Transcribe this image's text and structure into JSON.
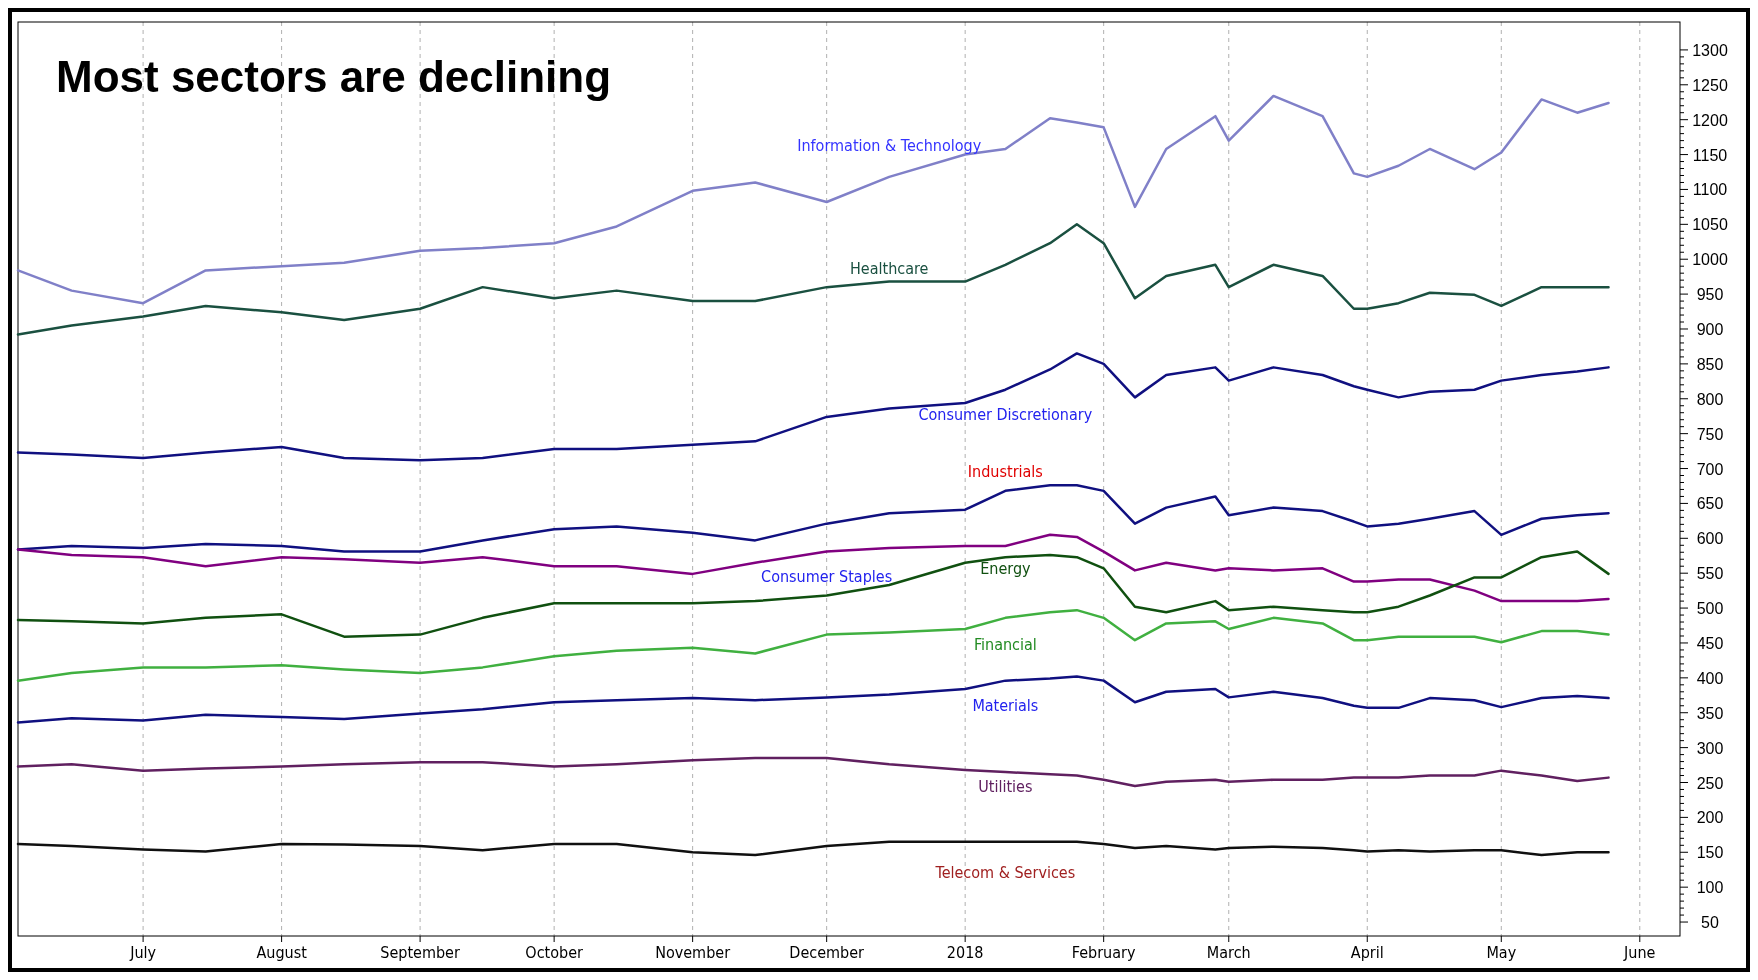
{
  "chart_data": {
    "type": "line",
    "title": "Most sectors are declining",
    "x": [
      "2017-06-03",
      "2017-06-15",
      "2017-07-01",
      "2017-07-15",
      "2017-08-01",
      "2017-08-15",
      "2017-09-01",
      "2017-09-15",
      "2017-10-01",
      "2017-10-15",
      "2017-11-01",
      "2017-11-15",
      "2017-12-01",
      "2017-12-15",
      "2018-01-01",
      "2018-01-10",
      "2018-01-20",
      "2018-01-26",
      "2018-02-01",
      "2018-02-08",
      "2018-02-15",
      "2018-02-26",
      "2018-03-01",
      "2018-03-11",
      "2018-03-22",
      "2018-03-29",
      "2018-04-01",
      "2018-04-08",
      "2018-04-15",
      "2018-04-25",
      "2018-05-01",
      "2018-05-10",
      "2018-05-18",
      "2018-05-25"
    ],
    "series": [
      {
        "name": "Information & Technology",
        "color": "#8080c8",
        "values": [
          984,
          955,
          937,
          984,
          990,
          995,
          1012,
          1016,
          1023,
          1047,
          1098,
          1110,
          1082,
          1118,
          1150,
          1158,
          1202,
          1196,
          1189,
          1075,
          1158,
          1205,
          1170,
          1234,
          1205,
          1123,
          1118,
          1134,
          1158,
          1129,
          1153,
          1229,
          1210,
          1224
        ]
      },
      {
        "name": "Healthcare",
        "color": "#1a5040",
        "values": [
          892,
          905,
          918,
          933,
          924,
          913,
          929,
          960,
          944,
          955,
          940,
          940,
          960,
          968,
          968,
          992,
          1023,
          1050,
          1023,
          944,
          976,
          992,
          960,
          992,
          976,
          929,
          929,
          937,
          952,
          949,
          933,
          960,
          960,
          960
        ]
      },
      {
        "name": "Consumer Discretionary",
        "color": "#101080",
        "values": [
          723,
          720,
          715,
          723,
          731,
          715,
          712,
          715,
          728,
          728,
          734,
          739,
          774,
          786,
          794,
          813,
          842,
          865,
          850,
          802,
          834,
          845,
          826,
          845,
          834,
          818,
          813,
          802,
          810,
          813,
          826,
          834,
          839,
          845
        ]
      },
      {
        "name": "Industrials",
        "color": "#101080",
        "values": [
          584,
          589,
          586,
          592,
          589,
          581,
          581,
          597,
          613,
          617,
          608,
          597,
          621,
          636,
          641,
          668,
          676,
          676,
          668,
          621,
          644,
          660,
          633,
          644,
          639,
          624,
          617,
          621,
          628,
          639,
          605,
          628,
          633,
          636
        ]
      },
      {
        "name": "Consumer Staples",
        "color": "#800080",
        "values": [
          584,
          576,
          573,
          560,
          573,
          570,
          565,
          573,
          560,
          560,
          549,
          565,
          581,
          586,
          589,
          589,
          605,
          602,
          581,
          554,
          565,
          554,
          557,
          554,
          557,
          538,
          538,
          541,
          541,
          525,
          510,
          510,
          510,
          513
        ]
      },
      {
        "name": "Energy",
        "color": "#105010",
        "values": [
          483,
          481,
          478,
          486,
          491,
          459,
          462,
          486,
          507,
          507,
          507,
          510,
          518,
          533,
          565,
          573,
          576,
          573,
          557,
          502,
          494,
          510,
          497,
          502,
          497,
          494,
          494,
          502,
          518,
          544,
          544,
          573,
          581,
          549
        ]
      },
      {
        "name": "Financial",
        "color": "#40b040",
        "values": [
          396,
          407,
          415,
          415,
          418,
          412,
          407,
          415,
          431,
          439,
          443,
          435,
          462,
          465,
          470,
          486,
          494,
          497,
          486,
          454,
          478,
          481,
          470,
          486,
          478,
          454,
          454,
          459,
          459,
          459,
          451,
          467,
          467,
          462
        ]
      },
      {
        "name": "Materials",
        "color": "#101080",
        "values": [
          336,
          342,
          339,
          347,
          344,
          341,
          349,
          355,
          365,
          368,
          371,
          368,
          372,
          376,
          384,
          396,
          399,
          402,
          396,
          365,
          380,
          384,
          372,
          380,
          371,
          360,
          357,
          357,
          371,
          368,
          358,
          371,
          374,
          371
        ]
      },
      {
        "name": "Utilities",
        "color": "#602060",
        "values": [
          273,
          276,
          267,
          270,
          273,
          276,
          279,
          279,
          273,
          276,
          282,
          285,
          285,
          276,
          268,
          265,
          262,
          260,
          254,
          245,
          251,
          254,
          251,
          254,
          254,
          257,
          257,
          257,
          260,
          260,
          267,
          260,
          252,
          257
        ]
      },
      {
        "name": "Telecom & Services",
        "color": "#101010",
        "values": [
          162,
          159,
          154,
          151,
          162,
          161,
          159,
          153,
          162,
          162,
          150,
          146,
          159,
          165,
          165,
          165,
          165,
          165,
          162,
          156,
          159,
          154,
          156,
          158,
          156,
          153,
          151,
          153,
          151,
          153,
          153,
          146,
          150,
          150
        ]
      }
    ],
    "xlim": [
      "2017-06-03",
      "2018-06-10"
    ],
    "xticks": [
      {
        "value": "2017-07-01",
        "label": "July"
      },
      {
        "value": "2017-08-01",
        "label": "August"
      },
      {
        "value": "2017-09-01",
        "label": "September"
      },
      {
        "value": "2017-10-01",
        "label": "October"
      },
      {
        "value": "2017-11-01",
        "label": "November"
      },
      {
        "value": "2017-12-01",
        "label": "December"
      },
      {
        "value": "2018-01-01",
        "label": "2018"
      },
      {
        "value": "2018-02-01",
        "label": "February"
      },
      {
        "value": "2018-03-01",
        "label": "March"
      },
      {
        "value": "2018-04-01",
        "label": "April"
      },
      {
        "value": "2018-05-01",
        "label": "May"
      },
      {
        "value": "2018-06-01",
        "label": "June"
      }
    ],
    "ylim": [
      30,
      1340
    ],
    "yticks": [
      50,
      100,
      150,
      200,
      250,
      300,
      350,
      400,
      450,
      500,
      550,
      600,
      650,
      700,
      750,
      800,
      850,
      900,
      950,
      1000,
      1050,
      1100,
      1150,
      1200,
      1250,
      1300
    ],
    "grid": "x"
  }
}
